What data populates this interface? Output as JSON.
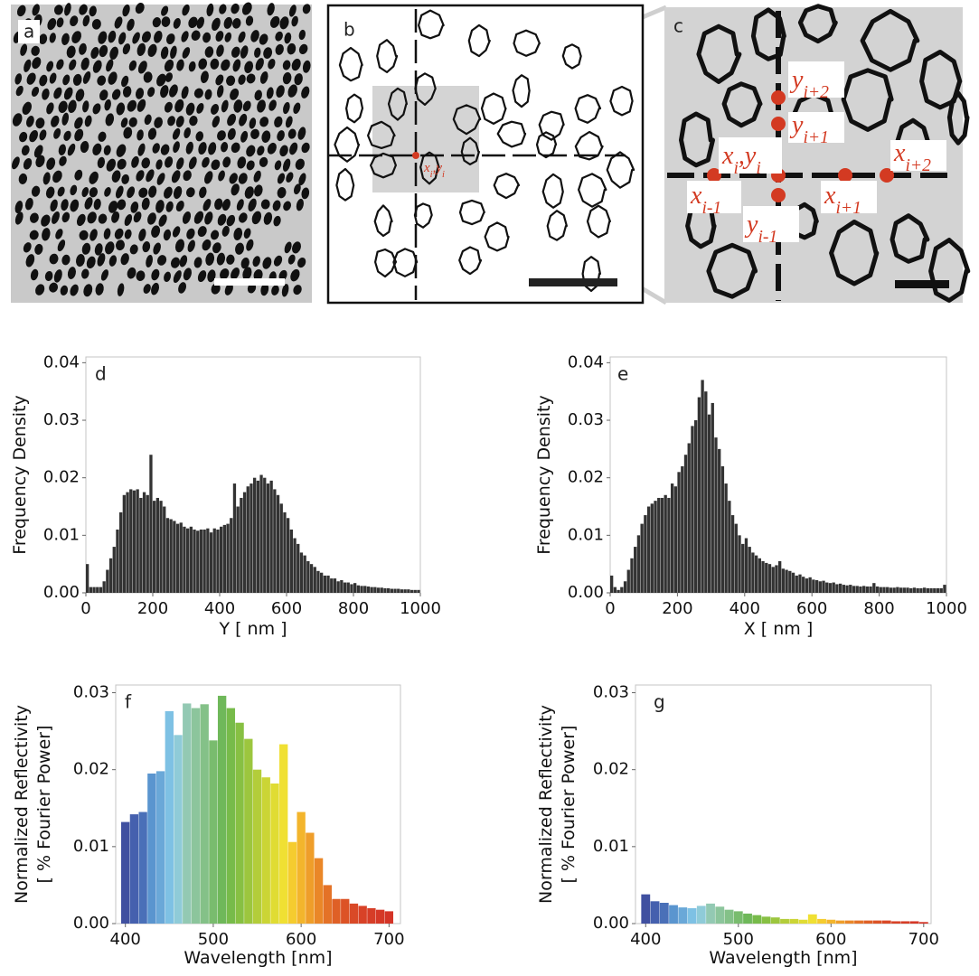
{
  "figure_panels": [
    {
      "label": "a"
    },
    {
      "label": "b",
      "annotation": [
        [
          "x",
          "i"
        ],
        [
          ",y",
          "i"
        ]
      ]
    },
    {
      "label": "c",
      "annotations": [
        [
          [
            "y",
            "i+2"
          ]
        ],
        [
          [
            "y",
            "i+1"
          ]
        ],
        [
          [
            "x",
            "i"
          ],
          [
            ",y",
            "i"
          ]
        ],
        [
          [
            "x",
            "i+2"
          ]
        ],
        [
          [
            "x",
            "i-1"
          ]
        ],
        [
          [
            "y",
            "i-1"
          ]
        ],
        [
          [
            "x",
            "i+1"
          ]
        ]
      ]
    }
  ],
  "chart_data": [
    {
      "type": "histogram",
      "panel": "d",
      "ylabel": [
        "Frequency Density"
      ],
      "xlabel": "Y [ nm ]",
      "color": "#333333",
      "bins": [
        0,
        10,
        20,
        30,
        40,
        50,
        60,
        70,
        80,
        90,
        100,
        110,
        120,
        130,
        140,
        150,
        160,
        170,
        180,
        190,
        200,
        210,
        220,
        230,
        240,
        250,
        260,
        270,
        280,
        290,
        300,
        310,
        320,
        330,
        340,
        350,
        360,
        370,
        380,
        390,
        400,
        410,
        420,
        430,
        440,
        450,
        460,
        470,
        480,
        490,
        500,
        510,
        520,
        530,
        540,
        550,
        560,
        570,
        580,
        590,
        600,
        610,
        620,
        630,
        640,
        650,
        660,
        670,
        680,
        690,
        700,
        710,
        720,
        730,
        740,
        750,
        760,
        770,
        780,
        790,
        800,
        810,
        820,
        830,
        840,
        850,
        860,
        870,
        880,
        890,
        900,
        910,
        920,
        930,
        940,
        950,
        960,
        970,
        980,
        990,
        1000
      ],
      "values": [
        0.005,
        0.001,
        0.001,
        0.001,
        0.001,
        0.002,
        0.004,
        0.006,
        0.008,
        0.011,
        0.014,
        0.017,
        0.0175,
        0.018,
        0.0178,
        0.018,
        0.0165,
        0.0175,
        0.017,
        0.024,
        0.016,
        0.0165,
        0.016,
        0.015,
        0.013,
        0.0128,
        0.0125,
        0.012,
        0.0122,
        0.0115,
        0.0112,
        0.0115,
        0.011,
        0.0108,
        0.011,
        0.011,
        0.0112,
        0.0105,
        0.0112,
        0.011,
        0.0115,
        0.0118,
        0.012,
        0.013,
        0.019,
        0.015,
        0.0165,
        0.0175,
        0.0185,
        0.019,
        0.02,
        0.0195,
        0.0205,
        0.02,
        0.019,
        0.0195,
        0.018,
        0.017,
        0.0155,
        0.014,
        0.013,
        0.011,
        0.0095,
        0.0085,
        0.007,
        0.0065,
        0.0055,
        0.005,
        0.0045,
        0.0038,
        0.0035,
        0.003,
        0.003,
        0.0025,
        0.0025,
        0.002,
        0.0022,
        0.0018,
        0.0018,
        0.0015,
        0.0017,
        0.0013,
        0.0012,
        0.0012,
        0.0011,
        0.001,
        0.001,
        0.0009,
        0.0009,
        0.0008,
        0.0008,
        0.0007,
        0.0007,
        0.0007,
        0.0006,
        0.0006,
        0.0006,
        0.0005,
        0.0005,
        0.0005
      ],
      "xlim": [
        0,
        1000
      ],
      "xticks": [
        0,
        200,
        400,
        600,
        800,
        1000
      ],
      "ylim": [
        0,
        0.041
      ],
      "yticks": [
        {
          "value": 0,
          "label": "0.00"
        },
        {
          "value": 0.01,
          "label": "0.01"
        },
        {
          "value": 0.02,
          "label": "0.02"
        },
        {
          "value": 0.03,
          "label": "0.03"
        },
        {
          "value": 0.04,
          "label": "0.04"
        }
      ]
    },
    {
      "type": "histogram",
      "panel": "e",
      "ylabel": [
        "Frequency Density"
      ],
      "xlabel": "X [ nm ]",
      "color": "#333333",
      "bins": [
        0,
        10,
        20,
        30,
        40,
        50,
        60,
        70,
        80,
        90,
        100,
        110,
        120,
        130,
        140,
        150,
        160,
        170,
        180,
        190,
        200,
        210,
        220,
        230,
        240,
        250,
        260,
        270,
        280,
        290,
        300,
        310,
        320,
        330,
        340,
        350,
        360,
        370,
        380,
        390,
        400,
        410,
        420,
        430,
        440,
        450,
        460,
        470,
        480,
        490,
        500,
        510,
        520,
        530,
        540,
        550,
        560,
        570,
        580,
        590,
        600,
        610,
        620,
        630,
        640,
        650,
        660,
        670,
        680,
        690,
        700,
        710,
        720,
        730,
        740,
        750,
        760,
        770,
        780,
        790,
        800,
        810,
        820,
        830,
        840,
        850,
        860,
        870,
        880,
        890,
        900,
        910,
        920,
        930,
        940,
        950,
        960,
        970,
        980,
        990,
        1000
      ],
      "values": [
        0.003,
        0.001,
        0.0005,
        0.001,
        0.002,
        0.004,
        0.006,
        0.008,
        0.01,
        0.012,
        0.0135,
        0.015,
        0.0155,
        0.016,
        0.0165,
        0.0165,
        0.017,
        0.0165,
        0.019,
        0.0185,
        0.021,
        0.022,
        0.024,
        0.026,
        0.029,
        0.03,
        0.034,
        0.037,
        0.035,
        0.031,
        0.033,
        0.027,
        0.025,
        0.022,
        0.019,
        0.016,
        0.0135,
        0.012,
        0.01,
        0.0085,
        0.0095,
        0.008,
        0.007,
        0.0065,
        0.006,
        0.0055,
        0.0052,
        0.005,
        0.0045,
        0.0048,
        0.0055,
        0.0042,
        0.004,
        0.0038,
        0.0035,
        0.003,
        0.0032,
        0.0028,
        0.0025,
        0.0027,
        0.0023,
        0.0022,
        0.002,
        0.0021,
        0.0018,
        0.0017,
        0.0018,
        0.0015,
        0.0016,
        0.0014,
        0.0013,
        0.0014,
        0.0012,
        0.0012,
        0.0011,
        0.0012,
        0.0011,
        0.0011,
        0.0017,
        0.0011,
        0.001,
        0.001,
        0.001,
        0.0009,
        0.0009,
        0.001,
        0.0009,
        0.0009,
        0.0009,
        0.0008,
        0.0009,
        0.0008,
        0.0008,
        0.0009,
        0.0008,
        0.0008,
        0.0008,
        0.0008,
        0.0008,
        0.0014
      ],
      "xlim": [
        0,
        1000
      ],
      "xticks": [
        0,
        200,
        400,
        600,
        800,
        1000
      ],
      "ylim": [
        0,
        0.041
      ],
      "yticks": [
        {
          "value": 0,
          "label": "0.00"
        },
        {
          "value": 0.01,
          "label": "0.01"
        },
        {
          "value": 0.02,
          "label": "0.02"
        },
        {
          "value": 0.03,
          "label": "0.03"
        },
        {
          "value": 0.04,
          "label": "0.04"
        }
      ]
    },
    {
      "type": "bar",
      "panel": "f",
      "ylabel": [
        "Normalized Reflectivity",
        "[ % Fourier Power]"
      ],
      "xlabel": "Wavelength [nm]",
      "x": [
        400,
        410,
        420,
        430,
        440,
        450,
        460,
        470,
        480,
        490,
        500,
        510,
        520,
        530,
        540,
        550,
        560,
        570,
        580,
        590,
        600,
        610,
        620,
        630,
        640,
        650,
        660,
        670,
        680,
        690,
        700
      ],
      "values": [
        0.0132,
        0.0142,
        0.0145,
        0.0195,
        0.0198,
        0.0276,
        0.0245,
        0.0286,
        0.028,
        0.0285,
        0.0238,
        0.0296,
        0.028,
        0.0261,
        0.024,
        0.02,
        0.019,
        0.0182,
        0.0233,
        0.0106,
        0.0145,
        0.0118,
        0.0085,
        0.005,
        0.0032,
        0.0032,
        0.0026,
        0.0023,
        0.002,
        0.0018,
        0.0016
      ],
      "colors": [
        "#4050a0",
        "#4560ae",
        "#4a70b8",
        "#5a95cf",
        "#6aa8d8",
        "#7ec1e4",
        "#8fcbd8",
        "#93c9b3",
        "#8cc59c",
        "#84c188",
        "#79bc6e",
        "#6fb85a",
        "#77bb4a",
        "#87c043",
        "#9cc63e",
        "#b3cd3a",
        "#cbd535",
        "#e0dc33",
        "#f0e033",
        "#f5cc2f",
        "#f3b52c",
        "#ef9e2a",
        "#ea8728",
        "#e47227",
        "#df6026",
        "#dc5326",
        "#d94927",
        "#d84227",
        "#d63d27",
        "#d53827",
        "#d43427"
      ],
      "xlim": [
        389,
        713
      ],
      "xticks": [
        400,
        500,
        600,
        700
      ],
      "ylim": [
        0,
        0.031
      ],
      "yticks": [
        {
          "value": 0,
          "label": "0.00"
        },
        {
          "value": 0.01,
          "label": "0.01"
        },
        {
          "value": 0.02,
          "label": "0.02"
        },
        {
          "value": 0.03,
          "label": "0.03"
        }
      ]
    },
    {
      "type": "bar",
      "panel": "g",
      "ylabel": [
        "Normalized Reflectivity",
        "[ % Fourier Power]"
      ],
      "xlabel": "Wavelength [nm]",
      "x": [
        400,
        410,
        420,
        430,
        440,
        450,
        460,
        470,
        480,
        490,
        500,
        510,
        520,
        530,
        540,
        550,
        560,
        570,
        580,
        590,
        600,
        610,
        620,
        630,
        640,
        650,
        660,
        670,
        680,
        690,
        700
      ],
      "values": [
        0.0038,
        0.0029,
        0.0027,
        0.0024,
        0.0021,
        0.002,
        0.0023,
        0.0026,
        0.0022,
        0.0018,
        0.0016,
        0.0013,
        0.0011,
        0.0009,
        0.0008,
        0.0006,
        0.0006,
        0.0005,
        0.0012,
        0.0006,
        0.0005,
        0.0004,
        0.0004,
        0.0004,
        0.0004,
        0.0004,
        0.0004,
        0.0003,
        0.0003,
        0.0003,
        0.0002
      ],
      "colors": [
        "#4050a0",
        "#4560ae",
        "#4a70b8",
        "#5a95cf",
        "#6aa8d8",
        "#7ec1e4",
        "#8fcbd8",
        "#93c9b3",
        "#8cc59c",
        "#84c188",
        "#79bc6e",
        "#6fb85a",
        "#77bb4a",
        "#87c043",
        "#9cc63e",
        "#b3cd3a",
        "#cbd535",
        "#e0dc33",
        "#f0e033",
        "#f5cc2f",
        "#f3b52c",
        "#ef9e2a",
        "#ea8728",
        "#e47227",
        "#df6026",
        "#dc5326",
        "#d94927",
        "#d84227",
        "#d63d27",
        "#d53827",
        "#d43427"
      ],
      "xlim": [
        389,
        708
      ],
      "xticks": [
        400,
        500,
        600,
        700
      ],
      "ylim": [
        0,
        0.031
      ],
      "yticks": [
        {
          "value": 0,
          "label": "0.00"
        },
        {
          "value": 0.01,
          "label": "0.01"
        },
        {
          "value": 0.02,
          "label": "0.02"
        },
        {
          "value": 0.03,
          "label": "0.03"
        }
      ]
    }
  ]
}
